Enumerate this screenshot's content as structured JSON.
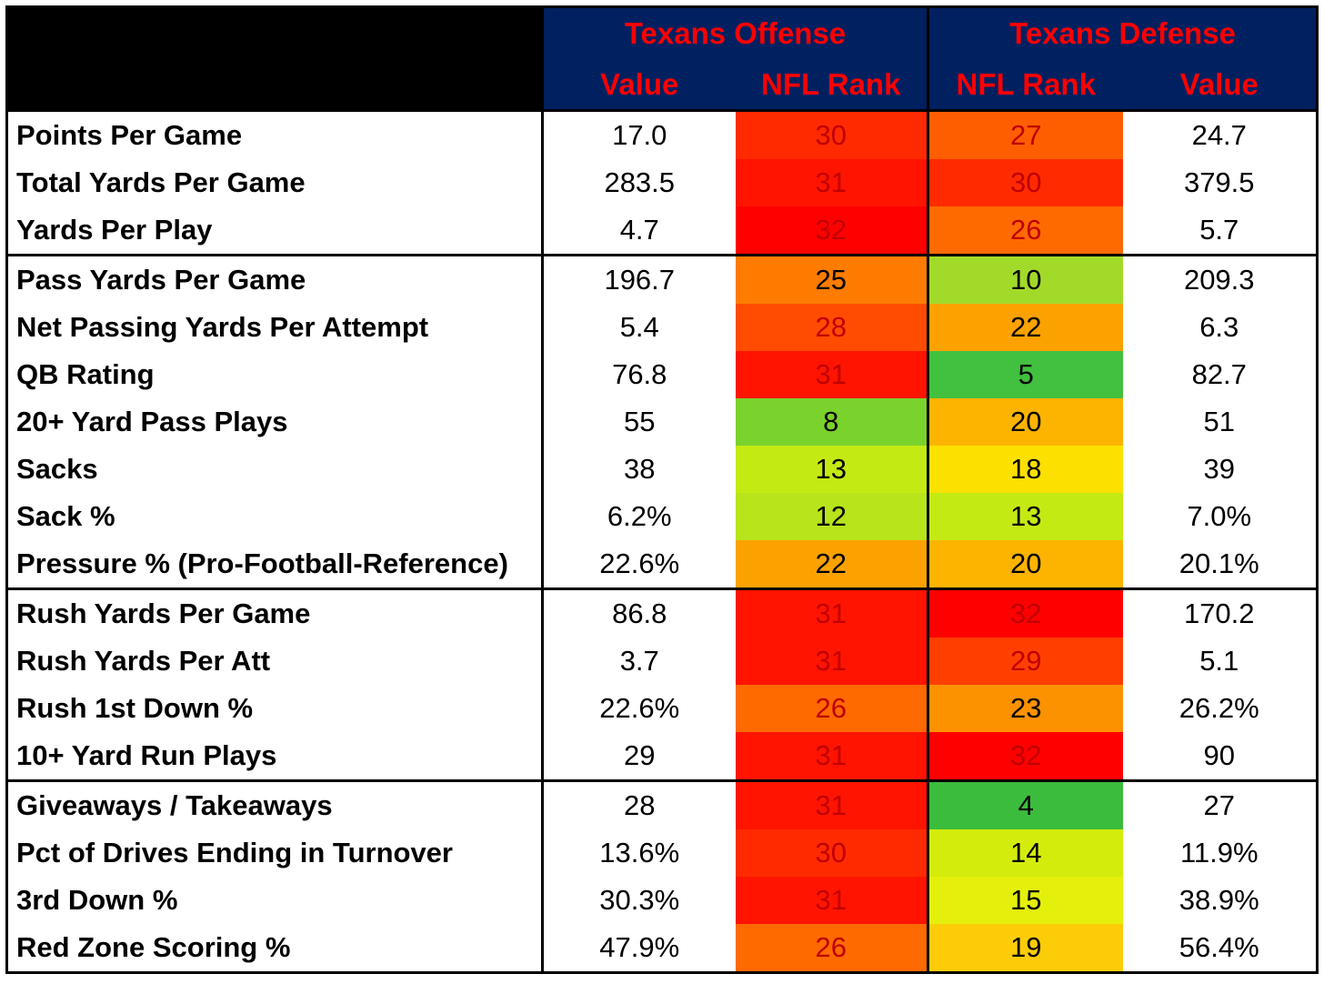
{
  "chart_data": {
    "type": "table",
    "groups": [
      "Texans Offense",
      "Texans Defense"
    ],
    "columns": [
      "Value",
      "NFL Rank",
      "NFL Rank",
      "Value"
    ],
    "sections": [
      [
        {
          "label": "Points Per Game",
          "off_value": "17.0",
          "off_rank": 30,
          "def_rank": 27,
          "def_value": "24.7"
        },
        {
          "label": "Total Yards Per Game",
          "off_value": "283.5",
          "off_rank": 31,
          "def_rank": 30,
          "def_value": "379.5"
        },
        {
          "label": "Yards Per Play",
          "off_value": "4.7",
          "off_rank": 32,
          "def_rank": 26,
          "def_value": "5.7"
        }
      ],
      [
        {
          "label": "Pass Yards Per Game",
          "off_value": "196.7",
          "off_rank": 25,
          "def_rank": 10,
          "def_value": "209.3"
        },
        {
          "label": "Net Passing Yards Per Attempt",
          "off_value": "5.4",
          "off_rank": 28,
          "def_rank": 22,
          "def_value": "6.3"
        },
        {
          "label": "QB Rating",
          "off_value": "76.8",
          "off_rank": 31,
          "def_rank": 5,
          "def_value": "82.7"
        },
        {
          "label": "20+ Yard Pass Plays",
          "off_value": "55",
          "off_rank": 8,
          "def_rank": 20,
          "def_value": "51"
        },
        {
          "label": "Sacks",
          "off_value": "38",
          "off_rank": 13,
          "def_rank": 18,
          "def_value": "39"
        },
        {
          "label": "Sack %",
          "off_value": "6.2%",
          "off_rank": 12,
          "def_rank": 13,
          "def_value": "7.0%"
        },
        {
          "label": "Pressure % (Pro-Football-Reference)",
          "off_value": "22.6%",
          "off_rank": 22,
          "def_rank": 20,
          "def_value": "20.1%"
        }
      ],
      [
        {
          "label": "Rush Yards Per Game",
          "off_value": "86.8",
          "off_rank": 31,
          "def_rank": 32,
          "def_value": "170.2"
        },
        {
          "label": "Rush Yards Per Att",
          "off_value": "3.7",
          "off_rank": 31,
          "def_rank": 29,
          "def_value": "5.1"
        },
        {
          "label": "Rush 1st Down %",
          "off_value": "22.6%",
          "off_rank": 26,
          "def_rank": 23,
          "def_value": "26.2%"
        },
        {
          "label": "10+ Yard Run Plays",
          "off_value": "29",
          "off_rank": 31,
          "def_rank": 32,
          "def_value": "90"
        }
      ],
      [
        {
          "label": "Giveaways / Takeaways",
          "off_value": "28",
          "off_rank": 31,
          "def_rank": 4,
          "def_value": "27"
        },
        {
          "label": "Pct of Drives Ending in Turnover",
          "off_value": "13.6%",
          "off_rank": 30,
          "def_rank": 14,
          "def_value": "11.9%"
        },
        {
          "label": "3rd Down %",
          "off_value": "30.3%",
          "off_rank": 31,
          "def_rank": 15,
          "def_value": "38.9%"
        },
        {
          "label": "Red Zone Scoring %",
          "off_value": "47.9%",
          "off_rank": 26,
          "def_rank": 19,
          "def_value": "56.4%"
        }
      ]
    ],
    "rank_colors": {
      "4": "#3cbc3c",
      "5": "#42c040",
      "8": "#7ad22c",
      "10": "#a2da2a",
      "12": "#b8e41c",
      "13": "#c4ea14",
      "14": "#d4ec0c",
      "15": "#e4f00c",
      "18": "#fce000",
      "19": "#fccc08",
      "20": "#fcb400",
      "22": "#fca200",
      "23": "#fc9200",
      "25": "#ff7c00",
      "26": "#ff6a00",
      "27": "#ff5e00",
      "28": "#ff4c00",
      "29": "#ff3e00",
      "30": "#ff2a00",
      "31": "#ff1400",
      "32": "#ff0000"
    }
  }
}
